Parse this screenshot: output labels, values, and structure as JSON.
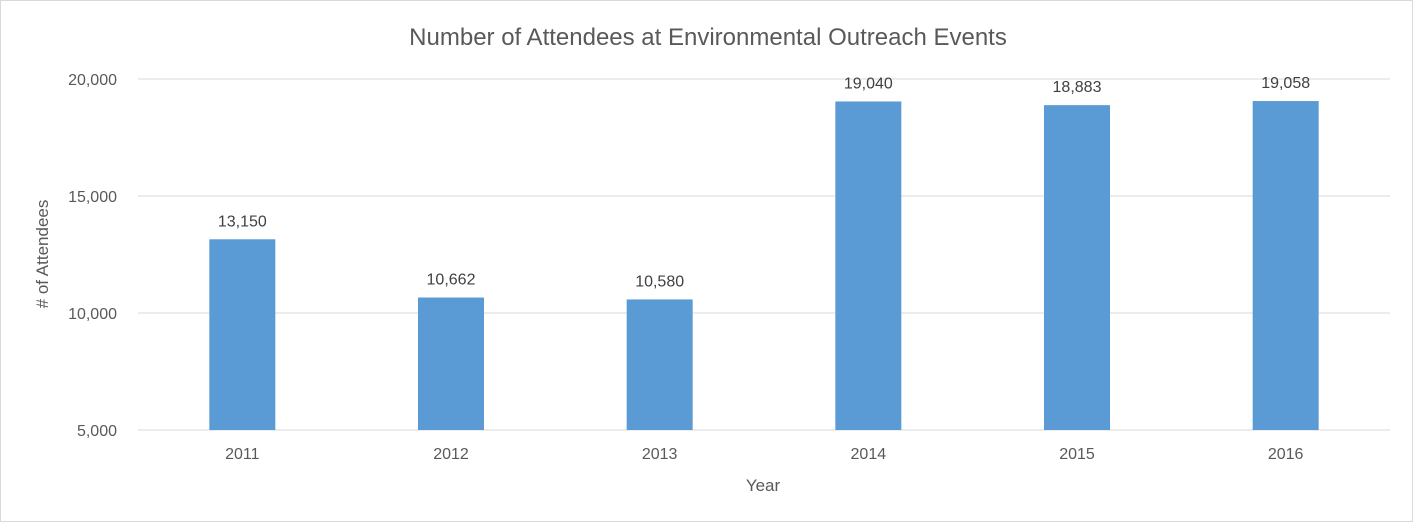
{
  "chart_data": {
    "type": "bar",
    "title": "Number of Attendees at Environmental Outreach Events",
    "xlabel": "Year",
    "ylabel": "# of Attendees",
    "categories": [
      "2011",
      "2012",
      "2013",
      "2014",
      "2015",
      "2016"
    ],
    "values": [
      13150,
      10662,
      10580,
      19040,
      18883,
      19058
    ],
    "data_labels": [
      "13,150",
      "10,662",
      "10,580",
      "19,040",
      "18,883",
      "19,058"
    ],
    "ylim": [
      5000,
      20000
    ],
    "yticks": [
      5000,
      10000,
      15000,
      20000
    ],
    "ytick_labels": [
      "5,000",
      "10,000",
      "15,000",
      "20,000"
    ],
    "grid": true,
    "legend": "none",
    "bar_color": "#5b9bd5"
  }
}
